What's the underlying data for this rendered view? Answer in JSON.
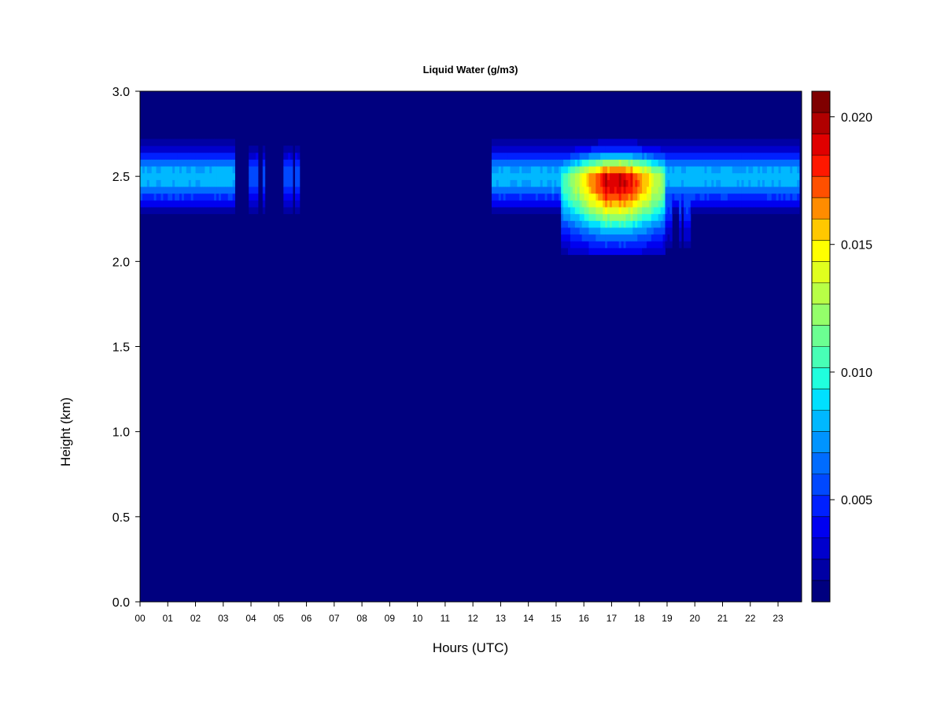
{
  "chart_data": {
    "type": "heatmap",
    "title": "Liquid Water (g/m3)",
    "xlabel": "Hours (UTC)",
    "ylabel": "Height (km)",
    "x_ticks": [
      "00",
      "01",
      "02",
      "03",
      "04",
      "05",
      "06",
      "07",
      "08",
      "09",
      "10",
      "11",
      "12",
      "13",
      "14",
      "15",
      "16",
      "17",
      "18",
      "19",
      "20",
      "21",
      "22",
      "23"
    ],
    "x_range_hours": [
      0,
      23.85
    ],
    "y_ticks": [
      "0.0",
      "0.5",
      "1.0",
      "1.5",
      "2.0",
      "2.5",
      "3.0"
    ],
    "y_range_km": [
      0,
      3
    ],
    "colorbar": {
      "range": [
        0.001,
        0.021
      ],
      "levels": 20,
      "tick_values": [
        0.005,
        0.01,
        0.015,
        0.02
      ],
      "tick_labels": [
        "0.005",
        "0.010",
        "0.015",
        "0.020"
      ],
      "colors": [
        "#00007F",
        "#0000A4",
        "#0000CC",
        "#0000F0",
        "#0020FF",
        "#0048FF",
        "#006CFF",
        "#0094FF",
        "#00B8FF",
        "#00E0FF",
        "#20FFDE",
        "#48FFB6",
        "#6CFF92",
        "#94FF6A",
        "#B8FF46",
        "#E0FF1E",
        "#FFFF00",
        "#FFC800",
        "#FF8C00",
        "#FF5000",
        "#FF1800",
        "#E00000",
        "#B00000",
        "#7F0000"
      ]
    },
    "background_value": 0.001,
    "cloud_regions": [
      {
        "hour_start": 0.0,
        "hour_end": 3.4,
        "center_km": 2.5,
        "half_thickness_km": 0.22,
        "peak_g_m3": 0.0085
      },
      {
        "hour_start": 3.55,
        "hour_end": 4.5,
        "center_km": 2.5,
        "half_thickness_km": 0.22,
        "peak_g_m3": 0.006,
        "intermittent": true
      },
      {
        "hour_start": 5.1,
        "hour_end": 5.75,
        "center_km": 2.5,
        "half_thickness_km": 0.22,
        "peak_g_m3": 0.006,
        "intermittent": true
      },
      {
        "hour_start": 12.7,
        "hour_end": 23.8,
        "center_km": 2.5,
        "half_thickness_km": 0.22,
        "peak_g_m3": 0.0085
      },
      {
        "hour_start": 15.2,
        "hour_end": 18.9,
        "center_km": 2.48,
        "half_thickness_km": 0.22,
        "peak_g_m3": 0.0205,
        "peak_hour": 17.2,
        "base_km": 2.05
      },
      {
        "hour_start": 18.9,
        "hour_end": 19.85,
        "center_km": 2.4,
        "half_thickness_km": 0.18,
        "peak_g_m3": 0.006,
        "intermittent": true,
        "base_km": 2.05
      }
    ]
  }
}
